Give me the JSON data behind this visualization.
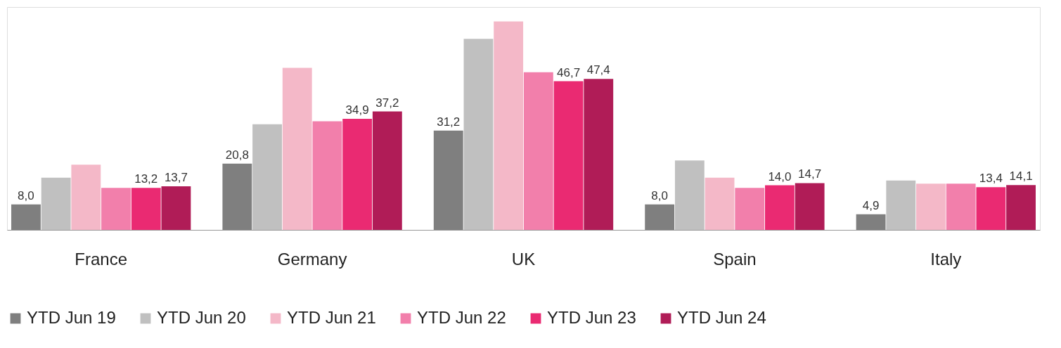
{
  "chart_data": {
    "type": "bar",
    "categories": [
      "France",
      "Germany",
      "UK",
      "Spain",
      "Italy"
    ],
    "series": [
      {
        "name": "YTD Jun 19",
        "color": "#7f7f7f",
        "values": [
          8.0,
          20.8,
          31.2,
          8.0,
          4.9
        ],
        "value_labels": [
          "8,0",
          "20,8",
          "31,2",
          "8,0",
          "4,9"
        ]
      },
      {
        "name": "YTD Jun 20",
        "color": "#c0c0c0",
        "values": [
          16.4,
          33.2,
          60.0,
          21.8,
          15.5
        ],
        "value_labels": [
          null,
          null,
          null,
          null,
          null
        ]
      },
      {
        "name": "YTD Jun 21",
        "color": "#f4b8c8",
        "values": [
          20.5,
          50.9,
          65.5,
          16.4,
          14.5
        ],
        "value_labels": [
          null,
          null,
          null,
          null,
          null
        ]
      },
      {
        "name": "YTD Jun 22",
        "color": "#f27fab",
        "values": [
          13.2,
          34.1,
          49.5,
          13.2,
          14.5
        ],
        "value_labels": [
          null,
          null,
          null,
          null,
          null
        ]
      },
      {
        "name": "YTD Jun 23",
        "color": "#ea2a72",
        "values": [
          13.2,
          34.9,
          46.7,
          14.0,
          13.4
        ],
        "value_labels": [
          "13,2",
          "34,9",
          "46,7",
          "14,0",
          "13,4"
        ]
      },
      {
        "name": "YTD Jun 24",
        "color": "#b01c57",
        "values": [
          13.7,
          37.2,
          47.4,
          14.7,
          14.1
        ],
        "value_labels": [
          "13,7",
          "37,2",
          "47,4",
          "14,7",
          "14,1"
        ]
      }
    ],
    "legend": "bottom",
    "tick_labels": "x"
  }
}
